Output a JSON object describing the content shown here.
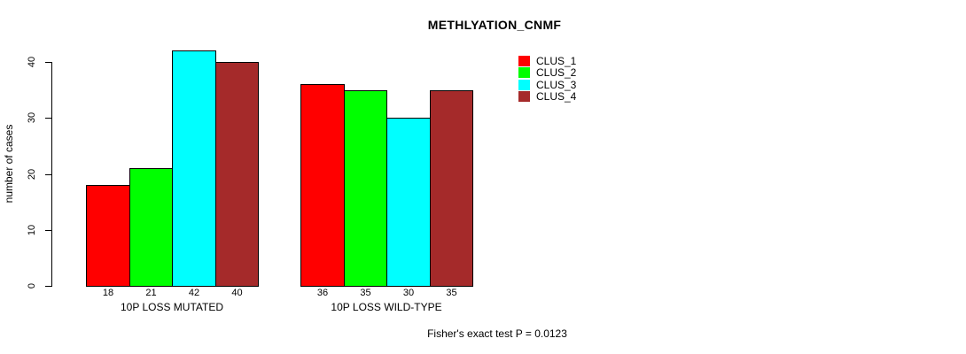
{
  "page": {
    "background_color": "#FFFFFF",
    "text_color": "#000000"
  },
  "chart_data": {
    "type": "bar",
    "title": "METHLYATION_CNMF",
    "ylabel": "number of cases",
    "xlabel": "",
    "ylim": [
      0,
      40
    ],
    "yticks": [
      0,
      10,
      20,
      30,
      40
    ],
    "grid": false,
    "legend_position": "top-right",
    "bar_border_color": "#000000",
    "categories": [
      "10P LOSS MUTATED",
      "10P LOSS WILD-TYPE"
    ],
    "series": [
      {
        "name": "CLUS_1",
        "color": "#FF0000",
        "values": [
          18,
          36
        ]
      },
      {
        "name": "CLUS_2",
        "color": "#00FF00",
        "values": [
          21,
          35
        ]
      },
      {
        "name": "CLUS_3",
        "color": "#00FFFF",
        "values": [
          42,
          30
        ]
      },
      {
        "name": "CLUS_4",
        "color": "#A52A2A",
        "values": [
          40,
          35
        ]
      }
    ],
    "bar_labels": [
      [
        "18",
        "21",
        "42",
        "40"
      ],
      [
        "36",
        "35",
        "30",
        "35"
      ]
    ],
    "annotation": "Fisher's exact test P = 0.0123"
  }
}
